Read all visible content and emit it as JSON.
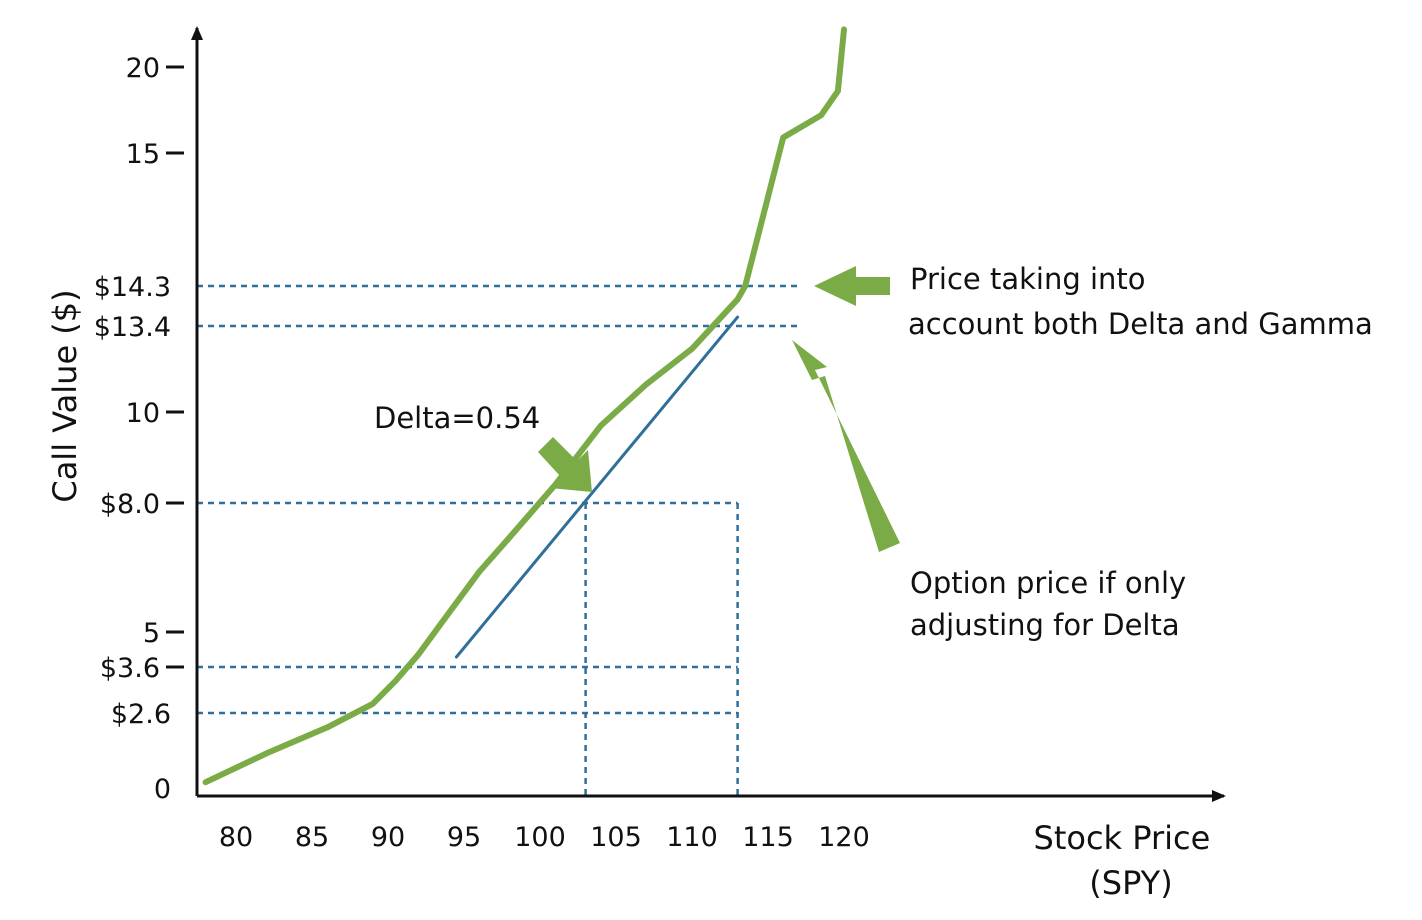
{
  "chart_data": {
    "type": "line",
    "xlabel": [
      "Stock Price",
      "(SPY)"
    ],
    "ylabel": "Call Value ($)",
    "x_ticks": [
      80,
      85,
      90,
      95,
      100,
      105,
      110,
      115,
      120
    ],
    "x_tick_labels": [
      "80",
      "85",
      "90",
      "95",
      "100",
      "105",
      "110",
      "115",
      "120"
    ],
    "y_ticks": [
      {
        "label": "0",
        "tick": false
      },
      {
        "label": "$2.6",
        "tick": false
      },
      {
        "label": "$3.6",
        "tick": true
      },
      {
        "label": "5",
        "tick": true
      },
      {
        "label": "$8.0",
        "tick": true
      },
      {
        "label": "10",
        "tick": true
      },
      {
        "label": "$13.4",
        "tick": false
      },
      {
        "label": "$14.3",
        "tick": false
      },
      {
        "label": "15",
        "tick": true
      },
      {
        "label": "20",
        "tick": true
      }
    ],
    "series": [
      {
        "color": "#7aab47",
        "points": [
          [
            78,
            0.2
          ],
          [
            82,
            1.2
          ],
          [
            86,
            2.1
          ],
          [
            89,
            2.8
          ],
          [
            90.5,
            3.3
          ],
          [
            92,
            4.1
          ],
          [
            93.5,
            5.2
          ],
          [
            96,
            6.4
          ],
          [
            98,
            7.2
          ],
          [
            101,
            8.4
          ],
          [
            104,
            9.7
          ],
          [
            107,
            11.1
          ],
          [
            110,
            12.5
          ],
          [
            113,
            14.0
          ],
          [
            113.5,
            14.3
          ],
          [
            116,
            15.9
          ],
          [
            118.5,
            17.2
          ],
          [
            119.6,
            18.6
          ],
          [
            120,
            20.8
          ]
        ]
      },
      {
        "color": "#2f6f99",
        "points": [
          [
            94.5,
            4.0
          ],
          [
            113,
            13.6
          ]
        ]
      }
    ],
    "reference_lines": [
      {
        "y": 14.3,
        "x_to": null
      },
      {
        "y": 13.4,
        "x_to": null
      },
      {
        "y": 8.0,
        "x_to": 113
      },
      {
        "y": 3.6,
        "x_to": 113
      },
      {
        "y": 2.6,
        "x_to": 113
      },
      {
        "x": 103,
        "y_from": 8.0
      },
      {
        "x": 113,
        "y_from": 8.0
      }
    ],
    "annotations": {
      "delta": "Delta=0.54",
      "gamma_lines": [
        "Price taking into",
        "account both Delta and Gamma"
      ],
      "delta_only_lines": [
        "Option price if only",
        "adjusting for Delta"
      ]
    },
    "colors": {
      "curve": "#7aab47",
      "tangent": "#2f6f99",
      "guides": "#2f6f99",
      "arrow": "#7aab47",
      "axis": "#111111"
    }
  }
}
